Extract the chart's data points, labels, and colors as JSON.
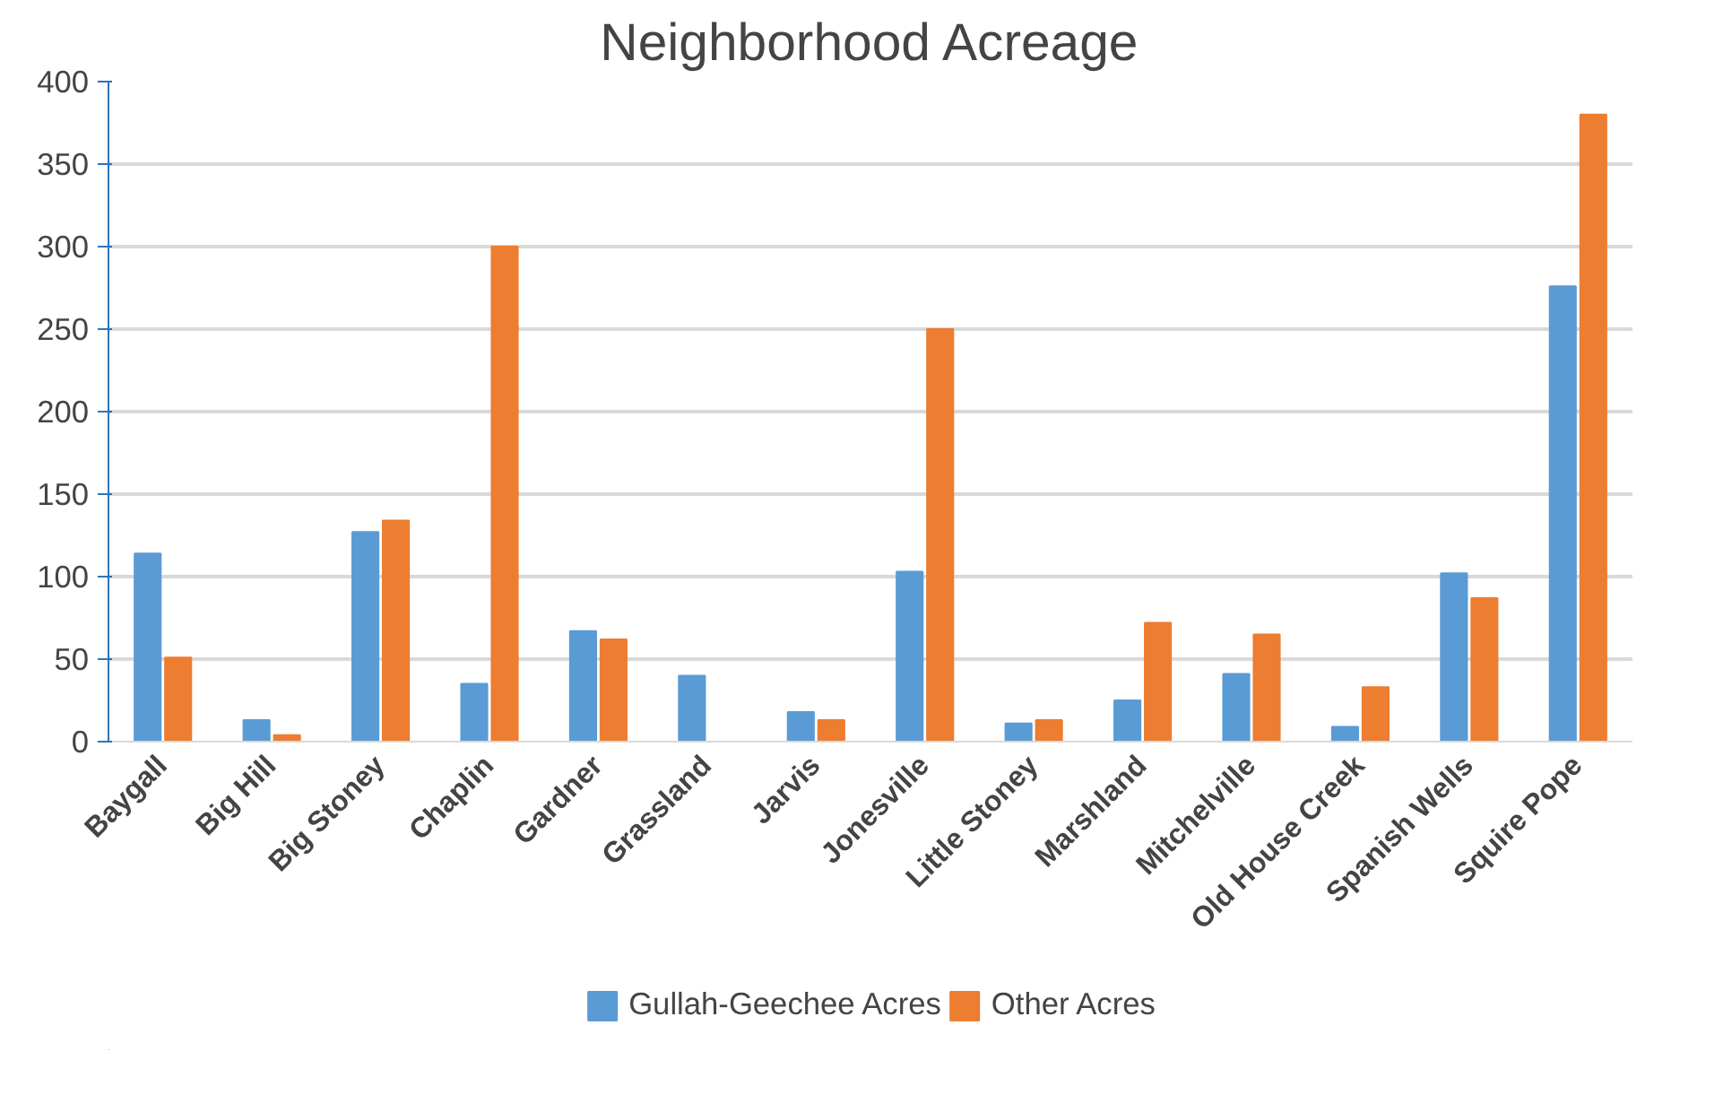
{
  "chart_data": {
    "type": "bar",
    "title": "Neighborhood Acreage",
    "categories": [
      "Baygall",
      "Big Hill",
      "Big Stoney",
      "Chaplin",
      "Gardner",
      "Grassland",
      "Jarvis",
      "Jonesville",
      "Little Stoney",
      "Marshland",
      "Mitchelville",
      "Old House Creek",
      "Spanish Wells",
      "Squire Pope"
    ],
    "series": [
      {
        "name": "Gullah-Geechee Acres",
        "color": "#5b9bd5",
        "values": [
          114,
          13,
          127,
          35,
          67,
          40,
          18,
          103,
          11,
          25,
          41,
          9,
          102,
          276
        ]
      },
      {
        "name": "Other Acres",
        "color": "#ed7d31",
        "values": [
          51,
          4,
          134,
          300,
          62,
          0,
          13,
          250,
          13,
          72,
          65,
          33,
          87,
          380
        ]
      }
    ],
    "ylim": [
      0,
      400
    ],
    "yticks": [
      0,
      50,
      100,
      150,
      200,
      250,
      300,
      350,
      400
    ],
    "grid": "y",
    "legend": "bottom"
  }
}
